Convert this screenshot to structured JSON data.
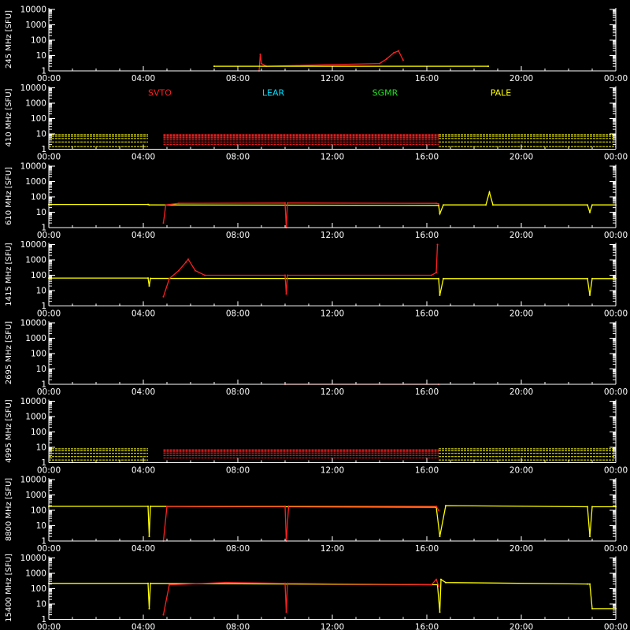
{
  "colors": {
    "background": "#000000",
    "axes": "#ffffff",
    "SVTO": "#ff2020",
    "LEAR": "#00e0ff",
    "SGMR": "#20e020",
    "PALE": "#ffff00"
  },
  "x_ticks": [
    "00:00",
    "04:00",
    "08:00",
    "12:00",
    "16:00",
    "20:00",
    "00:00"
  ],
  "y_ticks": [
    "1",
    "10",
    "100",
    "1000",
    "10000"
  ],
  "stations": [
    "SVTO",
    "LEAR",
    "SGMR",
    "PALE"
  ],
  "chart_data": [
    {
      "type": "scatter",
      "ylabel": "245 MHz [SFU]",
      "yscale": "log",
      "ylim": [
        1,
        10000
      ],
      "series": [
        {
          "name": "SVTO",
          "color": "#ff2020",
          "points": [
            [
              8.9,
              1
            ],
            [
              8.95,
              12
            ],
            [
              9.0,
              3
            ],
            [
              9.2,
              2
            ],
            [
              14.0,
              3
            ],
            [
              14.3,
              6
            ],
            [
              14.6,
              15
            ],
            [
              14.8,
              20
            ],
            [
              15.0,
              5
            ]
          ]
        },
        {
          "name": "PALE",
          "color": "#ffff00",
          "points": [
            [
              7.0,
              2
            ],
            [
              18.6,
              2
            ]
          ]
        }
      ]
    },
    {
      "type": "scatter",
      "ylabel": "410 MHz [SFU]",
      "yscale": "log",
      "ylim": [
        1,
        10000
      ],
      "series": [
        {
          "name": "PALE",
          "color": "#ffff00",
          "band": [
            [
              0,
              4.2
            ],
            [
              16.5,
              24
            ]
          ],
          "levels": [
            1.5,
            3,
            5,
            7,
            9
          ]
        },
        {
          "name": "SVTO",
          "color": "#ff2020",
          "band": [
            [
              4.85,
              16.5
            ]
          ],
          "levels": [
            2,
            3,
            4,
            5,
            6,
            7,
            8,
            9
          ]
        }
      ]
    },
    {
      "type": "line",
      "ylabel": "610 MHz [SFU]",
      "yscale": "log",
      "ylim": [
        1,
        10000
      ],
      "series": [
        {
          "name": "PALE",
          "color": "#ffff00",
          "points": [
            [
              0,
              32
            ],
            [
              4.2,
              32
            ],
            [
              4.25,
              30
            ],
            [
              16.5,
              28
            ],
            [
              16.55,
              8
            ],
            [
              16.7,
              30
            ],
            [
              18.5,
              30
            ],
            [
              18.65,
              200
            ],
            [
              18.8,
              30
            ],
            [
              22.8,
              30
            ],
            [
              22.9,
              10
            ],
            [
              23.0,
              30
            ],
            [
              24,
              30
            ]
          ]
        },
        {
          "name": "SVTO",
          "color": "#ff2020",
          "points": [
            [
              4.85,
              2
            ],
            [
              4.95,
              30
            ],
            [
              5.5,
              38
            ],
            [
              10.0,
              40
            ],
            [
              10.05,
              1
            ],
            [
              10.1,
              40
            ],
            [
              16.4,
              38
            ],
            [
              16.5,
              35
            ]
          ]
        }
      ]
    },
    {
      "type": "line",
      "ylabel": "1415 MHz [SFU]",
      "yscale": "log",
      "ylim": [
        1,
        10000
      ],
      "series": [
        {
          "name": "PALE",
          "color": "#ffff00",
          "points": [
            [
              0,
              65
            ],
            [
              4.2,
              65
            ],
            [
              4.25,
              20
            ],
            [
              4.3,
              62
            ],
            [
              16.5,
              60
            ],
            [
              16.55,
              5
            ],
            [
              16.7,
              60
            ],
            [
              22.8,
              60
            ],
            [
              22.9,
              5
            ],
            [
              23.0,
              60
            ],
            [
              24,
              60
            ]
          ]
        },
        {
          "name": "SVTO",
          "color": "#ff2020",
          "points": [
            [
              4.85,
              4
            ],
            [
              5.1,
              60
            ],
            [
              5.5,
              200
            ],
            [
              5.8,
              700
            ],
            [
              5.9,
              1100
            ],
            [
              6.2,
              200
            ],
            [
              6.6,
              100
            ],
            [
              10.0,
              100
            ],
            [
              10.05,
              6
            ],
            [
              10.1,
              100
            ],
            [
              16.2,
              100
            ],
            [
              16.4,
              150
            ],
            [
              16.45,
              10000
            ]
          ]
        }
      ]
    },
    {
      "type": "line",
      "ylabel": "2695 MHz [SFU]",
      "yscale": "log",
      "ylim": [
        1,
        10000
      ],
      "series": [
        {
          "name": "SVTO",
          "color": "#ff2020",
          "points": [
            [
              10.0,
              1
            ],
            [
              16.5,
              1
            ]
          ]
        }
      ]
    },
    {
      "type": "scatter",
      "ylabel": "4995 MHz [SFU]",
      "yscale": "log",
      "ylim": [
        1,
        10000
      ],
      "series": [
        {
          "name": "PALE",
          "color": "#ffff00",
          "band": [
            [
              0,
              4.2
            ],
            [
              16.5,
              24
            ]
          ],
          "levels": [
            1.5,
            2.5,
            4,
            6,
            8
          ]
        },
        {
          "name": "SVTO",
          "color": "#ff2020",
          "band": [
            [
              4.85,
              16.5
            ]
          ],
          "levels": [
            2,
            3,
            4,
            5,
            6,
            7
          ]
        }
      ]
    },
    {
      "type": "line",
      "ylabel": "8800 MHz [SFU]",
      "yscale": "log",
      "ylim": [
        1,
        10000
      ],
      "series": [
        {
          "name": "PALE",
          "color": "#ffff00",
          "points": [
            [
              0,
              180
            ],
            [
              4.2,
              180
            ],
            [
              4.25,
              2
            ],
            [
              4.3,
              180
            ],
            [
              16.4,
              160
            ],
            [
              16.55,
              2
            ],
            [
              16.8,
              200
            ],
            [
              22.8,
              170
            ],
            [
              22.9,
              2
            ],
            [
              23.0,
              170
            ],
            [
              24,
              170
            ]
          ]
        },
        {
          "name": "SVTO",
          "color": "#ff2020",
          "points": [
            [
              4.85,
              1
            ],
            [
              5.0,
              180
            ],
            [
              10.0,
              185
            ],
            [
              10.05,
              1
            ],
            [
              10.15,
              185
            ],
            [
              16.4,
              180
            ],
            [
              16.5,
              100
            ]
          ]
        }
      ]
    },
    {
      "type": "line",
      "ylabel": "15400 MHz [SFU]",
      "yscale": "log",
      "ylim": [
        1,
        10000
      ],
      "series": [
        {
          "name": "PALE",
          "color": "#ffff00",
          "points": [
            [
              0,
              220
            ],
            [
              4.2,
              220
            ],
            [
              4.25,
              5
            ],
            [
              4.3,
              220
            ],
            [
              16.45,
              180
            ],
            [
              16.55,
              3
            ],
            [
              16.6,
              400
            ],
            [
              16.8,
              250
            ],
            [
              22.8,
              200
            ],
            [
              22.9,
              200
            ],
            [
              23.0,
              5
            ],
            [
              24,
              5
            ]
          ]
        },
        {
          "name": "SVTO",
          "color": "#ff2020",
          "points": [
            [
              4.85,
              2
            ],
            [
              5.1,
              180
            ],
            [
              7.5,
              250
            ],
            [
              10.0,
              220
            ],
            [
              10.05,
              3
            ],
            [
              10.1,
              220
            ],
            [
              16.2,
              180
            ],
            [
              16.4,
              400
            ],
            [
              16.5,
              150
            ]
          ]
        }
      ]
    }
  ]
}
